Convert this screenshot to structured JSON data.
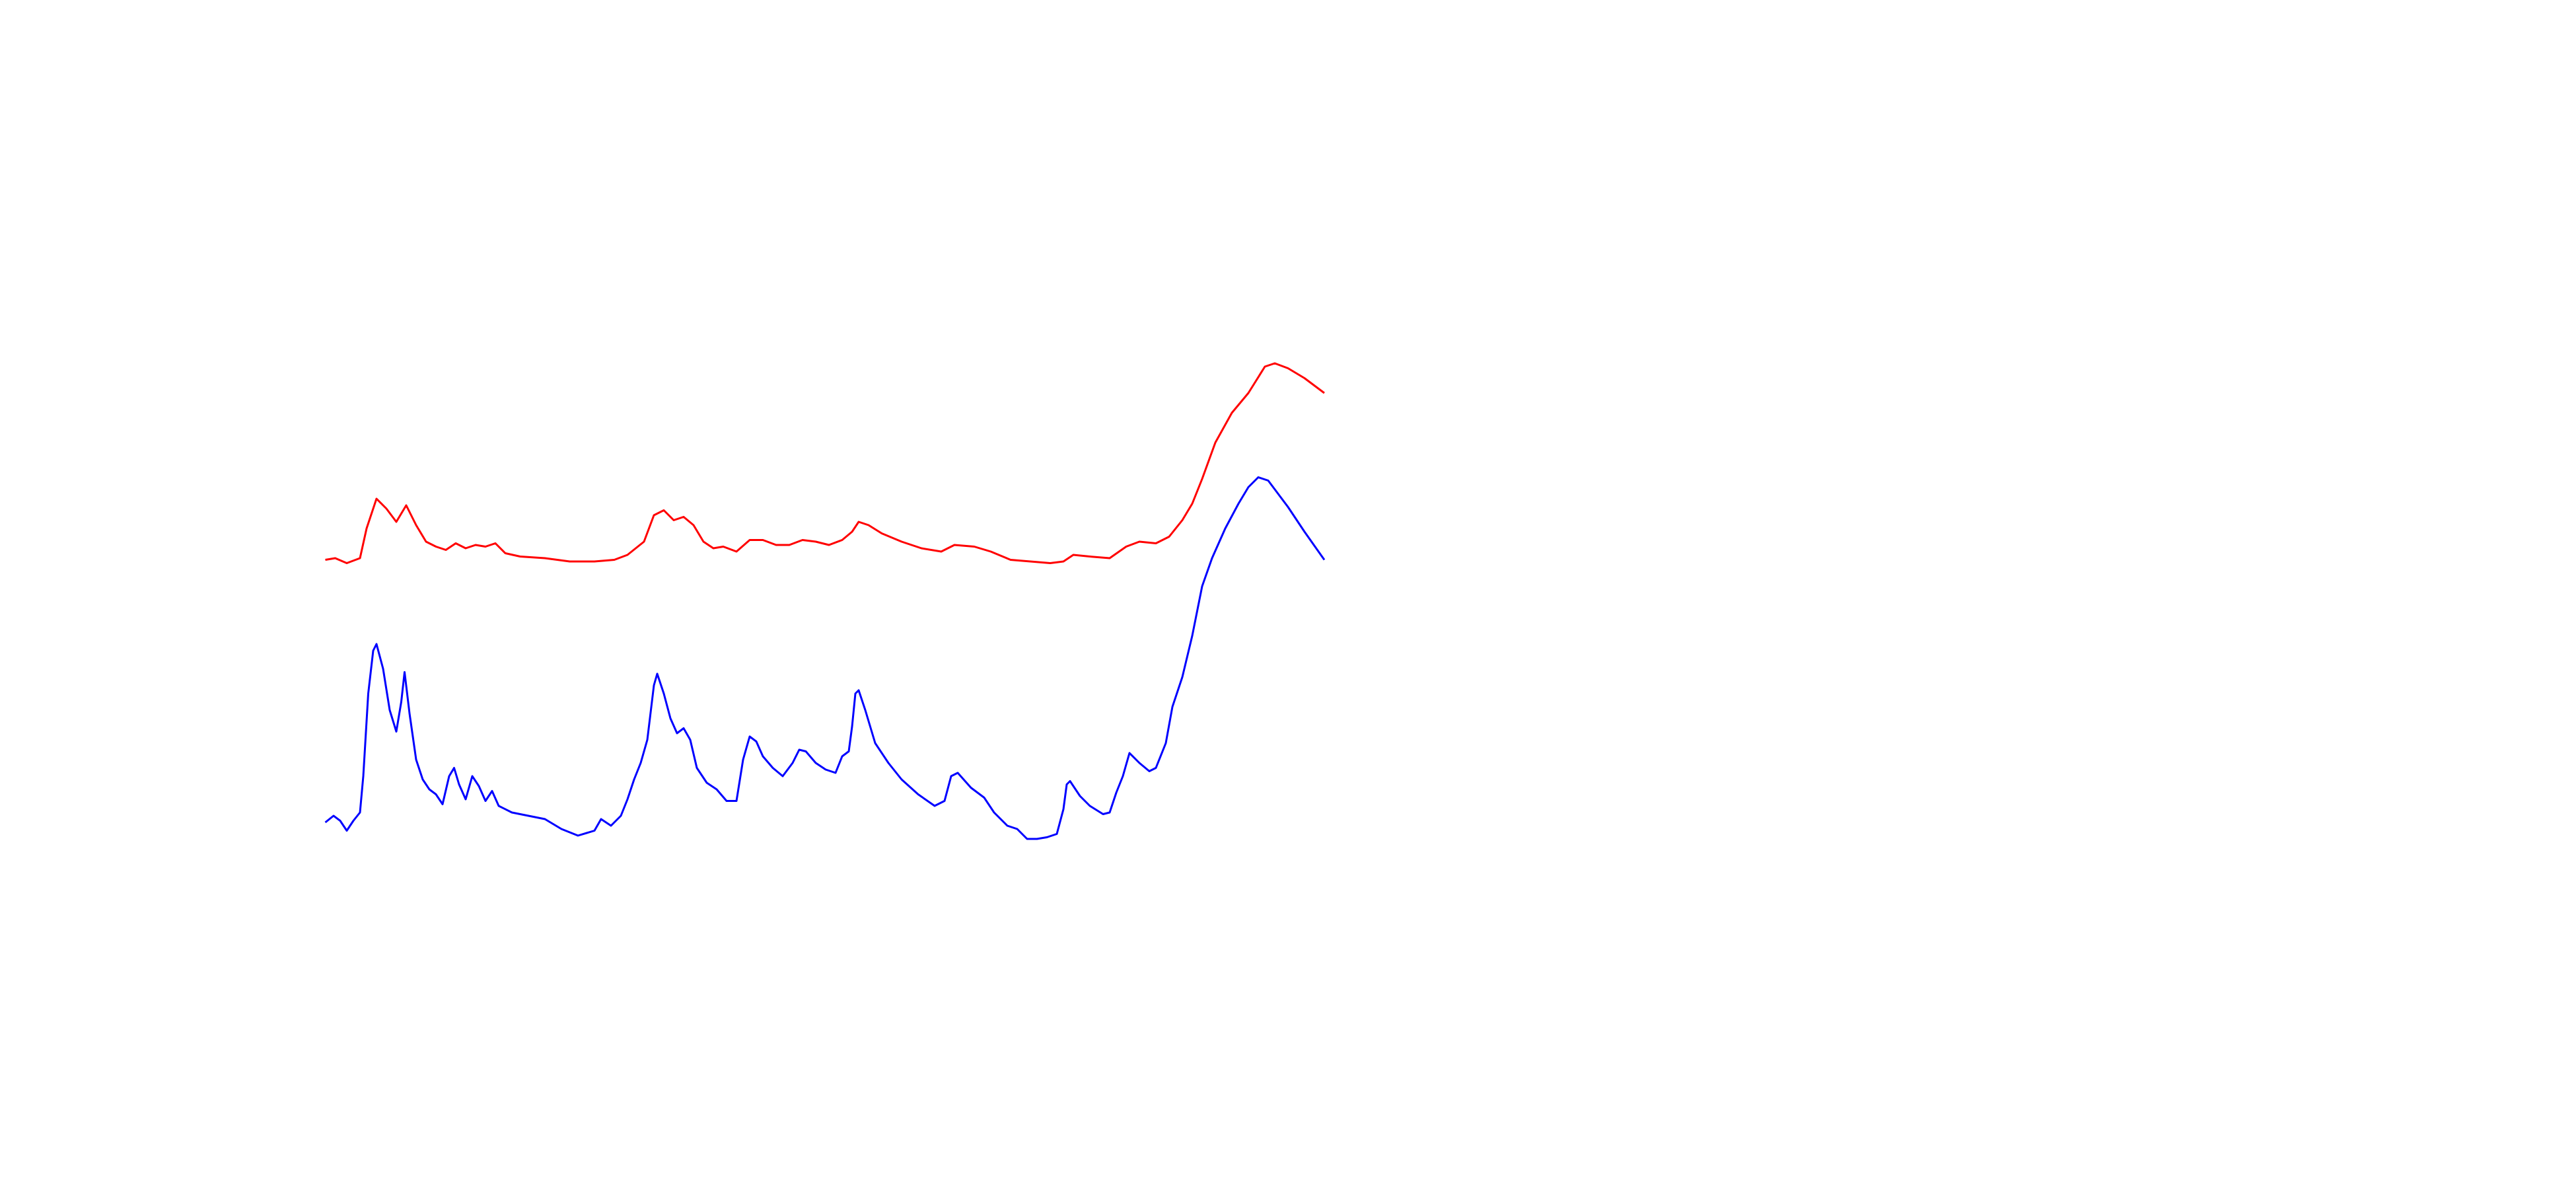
{
  "chart_data": {
    "type": "line",
    "xlim": [
      0,
      605
    ],
    "ylim": [
      0,
      320
    ],
    "series": [
      {
        "color": "#ff0000",
        "x": [
          0,
          6,
          13,
          21,
          25,
          31,
          37,
          43,
          49,
          55,
          61,
          67,
          73,
          79,
          85,
          91,
          97,
          103,
          109,
          118,
          133,
          148,
          163,
          175,
          183,
          193,
          199,
          205,
          211,
          217,
          223,
          229,
          235,
          241,
          249,
          257,
          265,
          273,
          281,
          289,
          297,
          305,
          313,
          319,
          323,
          329,
          337,
          349,
          361,
          373,
          381,
          393,
          403,
          415,
          427,
          439,
          447,
          453,
          463,
          475,
          485,
          493,
          503,
          511,
          519,
          525,
          531,
          539,
          549,
          559,
          569,
          575,
          583,
          593,
          605
        ],
        "values": [
          181,
          182,
          179,
          182,
          200,
          218,
          212,
          204,
          214,
          202,
          192,
          189,
          187,
          191,
          188,
          190,
          189,
          191,
          185,
          183,
          182,
          180,
          180,
          181,
          184,
          192,
          208,
          211,
          205,
          207,
          202,
          192,
          188,
          189,
          186,
          193,
          193,
          190,
          190,
          193,
          192,
          190,
          193,
          198,
          204,
          202,
          197,
          192,
          188,
          186,
          190,
          189,
          186,
          181,
          180,
          179,
          180,
          184,
          183,
          182,
          189,
          192,
          191,
          195,
          205,
          215,
          230,
          252,
          270,
          282,
          298,
          300,
          297,
          291,
          282
        ]
      },
      {
        "color": "#0000ff",
        "x": [
          0,
          5,
          9,
          13,
          17,
          21,
          23,
          26,
          29,
          31,
          35,
          39,
          43,
          46,
          48,
          51,
          55,
          59,
          63,
          67,
          71,
          75,
          78,
          81,
          85,
          89,
          93,
          97,
          101,
          105,
          113,
          123,
          133,
          143,
          153,
          163,
          167,
          173,
          179,
          183,
          187,
          191,
          195,
          199,
          201,
          205,
          209,
          213,
          217,
          221,
          225,
          231,
          237,
          243,
          249,
          253,
          257,
          261,
          265,
          271,
          277,
          283,
          287,
          291,
          297,
          303,
          309,
          313,
          317,
          319,
          321,
          323,
          327,
          333,
          341,
          349,
          359,
          369,
          375,
          379,
          383,
          391,
          399,
          405,
          413,
          419,
          425,
          431,
          437,
          443,
          447,
          449,
          451,
          457,
          463,
          471,
          475,
          479,
          483,
          487,
          493,
          499,
          503,
          509,
          513,
          519,
          525,
          531,
          537,
          545,
          553,
          559,
          565,
          571,
          577,
          583,
          593,
          605
        ],
        "values": [
          22,
          26,
          23,
          17,
          23,
          28,
          50,
          100,
          126,
          130,
          115,
          90,
          77,
          95,
          113,
          88,
          60,
          48,
          42,
          39,
          33,
          50,
          55,
          45,
          36,
          50,
          44,
          35,
          41,
          32,
          28,
          26,
          24,
          18,
          14,
          17,
          24,
          20,
          26,
          36,
          48,
          58,
          72,
          105,
          112,
          100,
          85,
          76,
          79,
          72,
          55,
          46,
          42,
          35,
          35,
          60,
          74,
          71,
          62,
          55,
          50,
          58,
          66,
          65,
          58,
          54,
          52,
          62,
          65,
          80,
          100,
          102,
          90,
          70,
          58,
          48,
          39,
          32,
          35,
          50,
          52,
          43,
          37,
          28,
          20,
          18,
          12,
          12,
          13,
          15,
          30,
          45,
          47,
          38,
          32,
          27,
          28,
          40,
          50,
          64,
          58,
          53,
          55,
          70,
          92,
          110,
          135,
          165,
          182,
          200,
          215,
          225,
          231,
          229,
          221,
          213,
          198,
          181
        ]
      }
    ]
  }
}
